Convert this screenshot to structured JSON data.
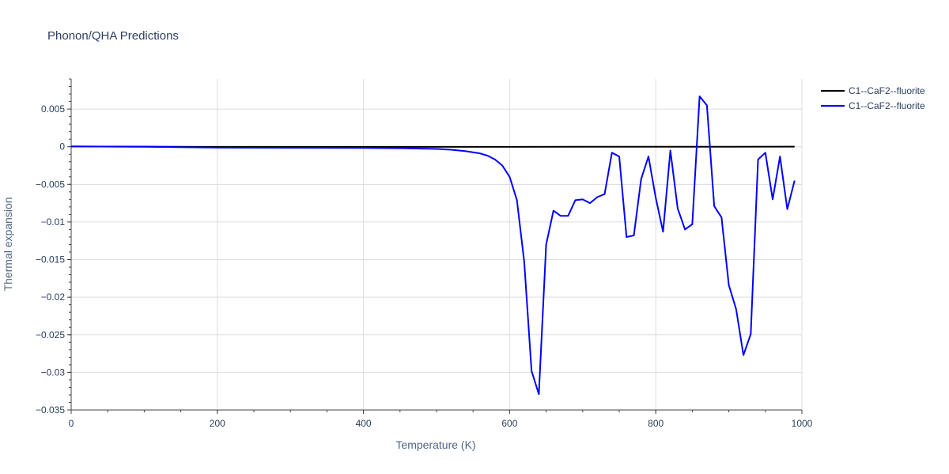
{
  "chart_data": {
    "type": "line",
    "title": "Phonon/QHA Predictions",
    "xlabel": "Temperature (K)",
    "ylabel": "Thermal expansion",
    "xlim": [
      0,
      1000
    ],
    "ylim": [
      -0.035,
      0.009
    ],
    "x_ticks": [
      0,
      200,
      400,
      600,
      800,
      1000
    ],
    "x_tick_labels": [
      "0",
      "200",
      "400",
      "600",
      "800",
      "1000"
    ],
    "y_ticks": [
      0.005,
      0,
      -0.005,
      -0.01,
      -0.015,
      -0.02,
      -0.025,
      -0.03,
      -0.035
    ],
    "y_tick_labels": [
      "0.005",
      "0",
      "−0.005",
      "−0.01",
      "−0.015",
      "−0.02",
      "−0.025",
      "−0.03",
      "−0.035"
    ],
    "grid": true,
    "legend_position": "top-right",
    "series": [
      {
        "name": "C1--CaF2--fluorite",
        "color": "#000000",
        "x": [
          0,
          100,
          200,
          300,
          400,
          500,
          600,
          700,
          800,
          900,
          990
        ],
        "y": [
          3e-05,
          1e-05,
          -2e-05,
          -2e-05,
          -2e-05,
          -2e-05,
          -2e-05,
          -1e-05,
          -1e-05,
          0.0,
          1e-05
        ]
      },
      {
        "name": "C1--CaF2--fluorite",
        "color": "#0000ff",
        "x": [
          0,
          100,
          200,
          300,
          400,
          450,
          500,
          520,
          540,
          560,
          570,
          580,
          590,
          600,
          610,
          620,
          630,
          640,
          650,
          660,
          670,
          680,
          690,
          700,
          710,
          720,
          730,
          740,
          750,
          760,
          770,
          780,
          790,
          800,
          810,
          820,
          830,
          840,
          850,
          860,
          870,
          880,
          890,
          900,
          910,
          920,
          930,
          940,
          950,
          960,
          970,
          980,
          990
        ],
        "y": [
          3e-05,
          0.0,
          -0.00012,
          -0.00015,
          -0.00016,
          -0.0002,
          -0.0003,
          -0.0004,
          -0.0006,
          -0.0009,
          -0.0012,
          -0.0017,
          -0.0025,
          -0.004,
          -0.0071,
          -0.0153,
          -0.0298,
          -0.0329,
          -0.013,
          -0.0085,
          -0.0092,
          -0.0092,
          -0.0071,
          -0.007,
          -0.0075,
          -0.0067,
          -0.0063,
          -0.0008,
          -0.0013,
          -0.012,
          -0.0118,
          -0.0043,
          -0.0013,
          -0.0068,
          -0.0113,
          -0.0005,
          -0.0082,
          -0.011,
          -0.0103,
          0.0067,
          0.0055,
          -0.0079,
          -0.0094,
          -0.0184,
          -0.0216,
          -0.0277,
          -0.0249,
          -0.0017,
          -0.0008,
          -0.007,
          -0.0013,
          -0.0083,
          -0.0045
        ]
      }
    ]
  }
}
